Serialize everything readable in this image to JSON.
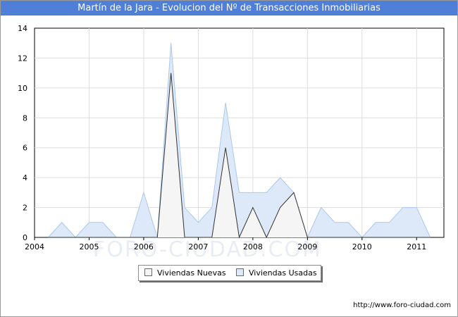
{
  "title": "Martín de la Jara - Evolucion del Nº de Transacciones Inmobiliarias",
  "watermark": "FORO-CIUDAD.COM",
  "credit": "http://www.foro-ciudad.com",
  "colors": {
    "title_bar": "#4f7fd6",
    "nuevas_fill": "#f5f5f5",
    "nuevas_line": "#333333",
    "usadas_fill": "#dde9f8",
    "usadas_line": "#a9c8ee"
  },
  "chart_data": {
    "type": "area",
    "title": "Martín de la Jara - Evolucion del Nº de Transacciones Inmobiliarias",
    "xlabel": "",
    "ylabel": "",
    "xlim": [
      2004,
      2011.5
    ],
    "ylim": [
      0,
      14
    ],
    "x_ticks": [
      "2004",
      "2005",
      "2006",
      "2007",
      "2008",
      "2009",
      "2010",
      "2011"
    ],
    "y_ticks": [
      "0",
      "2",
      "4",
      "6",
      "8",
      "10",
      "12",
      "14"
    ],
    "grid": true,
    "legend": "bottom-center",
    "x": [
      2004.25,
      2004.5,
      2004.75,
      2005.0,
      2005.25,
      2005.5,
      2005.75,
      2006.0,
      2006.25,
      2006.5,
      2006.75,
      2007.0,
      2007.25,
      2007.5,
      2007.75,
      2008.0,
      2008.25,
      2008.5,
      2008.75,
      2009.0,
      2009.25,
      2009.5,
      2009.75,
      2010.0,
      2010.25,
      2010.5,
      2010.75,
      2011.0,
      2011.25
    ],
    "series": [
      {
        "name": "Viviendas Nuevas",
        "values": [
          0,
          0,
          0,
          0,
          0,
          0,
          0,
          0,
          0,
          11,
          0,
          0,
          0,
          6,
          0,
          2,
          0,
          2,
          3,
          0,
          0,
          0,
          0,
          0,
          0,
          0,
          0,
          0,
          0
        ]
      },
      {
        "name": "Viviendas Usadas",
        "values": [
          0,
          1,
          0,
          1,
          1,
          0,
          0,
          3,
          0,
          13,
          2,
          1,
          2,
          9,
          3,
          3,
          3,
          4,
          3,
          0,
          2,
          1,
          1,
          0,
          1,
          1,
          2,
          2,
          0
        ]
      }
    ]
  }
}
